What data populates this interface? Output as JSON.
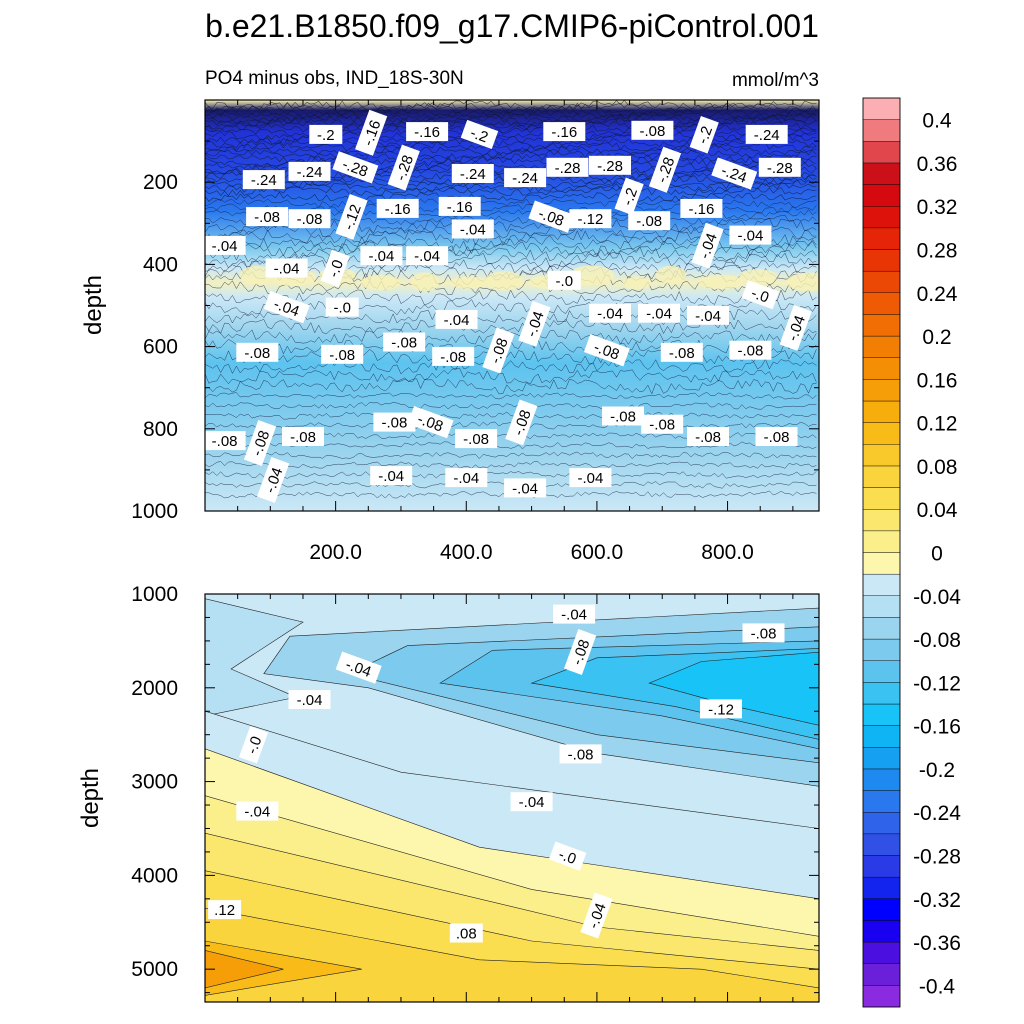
{
  "figure": {
    "title": "b.e21.B1850.f09_g17.CMIP6-piControl.001"
  },
  "chart_data": [
    {
      "type": "contour",
      "panel": "upper",
      "left_title": "PO4 minus obs, IND_18S-30N",
      "right_title": "mmol/m^3",
      "ylabel": "depth",
      "xlabel": "",
      "xlim": [
        0,
        940
      ],
      "ylim": [
        0,
        1000
      ],
      "y_inverted": true,
      "x_ticks": [
        "200.0",
        "400.0",
        "600.0",
        "800.0"
      ],
      "x_tick_values": [
        200,
        400,
        600,
        800
      ],
      "y_ticks": [
        "200",
        "400",
        "600",
        "800",
        "1000"
      ],
      "y_tick_values": [
        200,
        400,
        600,
        800,
        1000
      ],
      "contour_labels": [
        {
          "text": "-.2",
          "x": 185,
          "y": 85
        },
        {
          "text": "-.16",
          "x": 255,
          "y": 80
        },
        {
          "text": "-.16",
          "x": 340,
          "y": 78
        },
        {
          "text": "-.2",
          "x": 420,
          "y": 85
        },
        {
          "text": "-.16",
          "x": 550,
          "y": 78
        },
        {
          "text": "-.08",
          "x": 685,
          "y": 75
        },
        {
          "text": "-.2",
          "x": 765,
          "y": 85
        },
        {
          "text": "-.24",
          "x": 860,
          "y": 85
        },
        {
          "text": "-.24",
          "x": 90,
          "y": 195
        },
        {
          "text": "-.24",
          "x": 160,
          "y": 175
        },
        {
          "text": "-.28",
          "x": 230,
          "y": 165
        },
        {
          "text": "-.28",
          "x": 305,
          "y": 165
        },
        {
          "text": "-.24",
          "x": 410,
          "y": 180
        },
        {
          "text": "-.24",
          "x": 490,
          "y": 190
        },
        {
          "text": "-.28",
          "x": 555,
          "y": 165
        },
        {
          "text": "-.28",
          "x": 620,
          "y": 160
        },
        {
          "text": "-.28",
          "x": 705,
          "y": 170
        },
        {
          "text": "-.24",
          "x": 810,
          "y": 180
        },
        {
          "text": "-.28",
          "x": 880,
          "y": 165
        },
        {
          "text": "-.08",
          "x": 95,
          "y": 285
        },
        {
          "text": "-.08",
          "x": 160,
          "y": 290
        },
        {
          "text": "-.12",
          "x": 225,
          "y": 285
        },
        {
          "text": "-.16",
          "x": 295,
          "y": 265
        },
        {
          "text": "-.16",
          "x": 390,
          "y": 260
        },
        {
          "text": "-.08",
          "x": 530,
          "y": 285
        },
        {
          "text": "-.12",
          "x": 590,
          "y": 290
        },
        {
          "text": "-.2",
          "x": 650,
          "y": 235
        },
        {
          "text": "-.08",
          "x": 680,
          "y": 295
        },
        {
          "text": "-.16",
          "x": 760,
          "y": 265
        },
        {
          "text": "-.04",
          "x": 30,
          "y": 355
        },
        {
          "text": "-.04",
          "x": 125,
          "y": 410
        },
        {
          "text": "-.0",
          "x": 200,
          "y": 410
        },
        {
          "text": "-.04",
          "x": 270,
          "y": 380
        },
        {
          "text": "-.04",
          "x": 340,
          "y": 380
        },
        {
          "text": "-.04",
          "x": 410,
          "y": 315
        },
        {
          "text": "-.0",
          "x": 550,
          "y": 440
        },
        {
          "text": "-.04",
          "x": 770,
          "y": 355
        },
        {
          "text": "-.04",
          "x": 835,
          "y": 330
        },
        {
          "text": "-.04",
          "x": 125,
          "y": 505
        },
        {
          "text": "-.0",
          "x": 210,
          "y": 505
        },
        {
          "text": "-.04",
          "x": 385,
          "y": 535
        },
        {
          "text": "-.04",
          "x": 505,
          "y": 545
        },
        {
          "text": "-.04",
          "x": 620,
          "y": 520
        },
        {
          "text": "-.04",
          "x": 695,
          "y": 520
        },
        {
          "text": "-.04",
          "x": 770,
          "y": 525
        },
        {
          "text": "-.0",
          "x": 850,
          "y": 475
        },
        {
          "text": "-.04",
          "x": 905,
          "y": 555
        },
        {
          "text": "-.08",
          "x": 80,
          "y": 615
        },
        {
          "text": "-.08",
          "x": 210,
          "y": 620
        },
        {
          "text": "-.08",
          "x": 305,
          "y": 590
        },
        {
          "text": "-.08",
          "x": 380,
          "y": 625
        },
        {
          "text": "-.08",
          "x": 450,
          "y": 610
        },
        {
          "text": "-.08",
          "x": 615,
          "y": 610
        },
        {
          "text": "-.08",
          "x": 730,
          "y": 615
        },
        {
          "text": "-.08",
          "x": 835,
          "y": 610
        },
        {
          "text": "-.08",
          "x": 30,
          "y": 830
        },
        {
          "text": "-.08",
          "x": 85,
          "y": 835
        },
        {
          "text": "-.08",
          "x": 150,
          "y": 820
        },
        {
          "text": "-.08",
          "x": 290,
          "y": 785
        },
        {
          "text": "-.08",
          "x": 345,
          "y": 785
        },
        {
          "text": "-.08",
          "x": 415,
          "y": 825
        },
        {
          "text": "-.08",
          "x": 485,
          "y": 785
        },
        {
          "text": "-.08",
          "x": 640,
          "y": 770
        },
        {
          "text": "-.08",
          "x": 700,
          "y": 790
        },
        {
          "text": "-.08",
          "x": 770,
          "y": 820
        },
        {
          "text": "-.08",
          "x": 875,
          "y": 820
        },
        {
          "text": "-.04",
          "x": 105,
          "y": 925
        },
        {
          "text": "-.04",
          "x": 285,
          "y": 915
        },
        {
          "text": "-.04",
          "x": 400,
          "y": 920
        },
        {
          "text": "-.04",
          "x": 490,
          "y": 945
        },
        {
          "text": "-.04",
          "x": 590,
          "y": 920
        }
      ]
    },
    {
      "type": "contour",
      "panel": "lower",
      "ylabel": "depth",
      "xlabel": "",
      "xlim": [
        0,
        940
      ],
      "ylim": [
        1000,
        5350
      ],
      "y_inverted": true,
      "y_ticks": [
        "1000",
        "2000",
        "3000",
        "4000",
        "5000"
      ],
      "y_tick_values": [
        1000,
        2000,
        3000,
        4000,
        5000
      ],
      "contour_labels": [
        {
          "text": "-.04",
          "x": 565,
          "y": 1220
        },
        {
          "text": "-.08",
          "x": 575,
          "y": 1620
        },
        {
          "text": "-.08",
          "x": 855,
          "y": 1420
        },
        {
          "text": "-.04",
          "x": 235,
          "y": 1790
        },
        {
          "text": "-.04",
          "x": 160,
          "y": 2130
        },
        {
          "text": "-.12",
          "x": 790,
          "y": 2230
        },
        {
          "text": "-.0",
          "x": 75,
          "y": 2610
        },
        {
          "text": "-.08",
          "x": 575,
          "y": 2710
        },
        {
          "text": "-.04",
          "x": 500,
          "y": 3220
        },
        {
          "text": "-.04",
          "x": 80,
          "y": 3320
        },
        {
          "text": "-.0",
          "x": 555,
          "y": 3800
        },
        {
          "text": "-.04",
          "x": 600,
          "y": 4430
        },
        {
          "text": ".12",
          "x": 30,
          "y": 4370
        },
        {
          "text": ".08",
          "x": 400,
          "y": 4620
        }
      ]
    },
    {
      "type": "colorbar",
      "levels": [
        -0.42,
        -0.4,
        -0.38,
        -0.36,
        -0.34,
        -0.32,
        -0.3,
        -0.28,
        -0.26,
        -0.24,
        -0.22,
        -0.2,
        -0.18,
        -0.16,
        -0.14,
        -0.12,
        -0.1,
        -0.08,
        -0.06,
        -0.04,
        -0.02,
        0,
        0.02,
        0.04,
        0.06,
        0.08,
        0.1,
        0.12,
        0.14,
        0.16,
        0.18,
        0.2,
        0.22,
        0.24,
        0.26,
        0.28,
        0.3,
        0.32,
        0.34,
        0.36,
        0.38,
        0.4,
        0.42
      ],
      "tick_labels": [
        "-0.4",
        "-0.36",
        "-0.32",
        "-0.28",
        "-0.24",
        "-0.2",
        "-0.16",
        "-0.12",
        "-0.08",
        "-0.04",
        "0",
        "0.04",
        "0.08",
        "0.12",
        "0.16",
        "0.2",
        "0.24",
        "0.28",
        "0.32",
        "0.36",
        "0.4"
      ],
      "tick_values": [
        -0.4,
        -0.36,
        -0.32,
        -0.28,
        -0.24,
        -0.2,
        -0.16,
        -0.12,
        -0.08,
        -0.04,
        0,
        0.04,
        0.08,
        0.12,
        0.16,
        0.2,
        0.24,
        0.28,
        0.32,
        0.36,
        0.4
      ],
      "colors": [
        "#8a2be2",
        "#6a1fd8",
        "#4b0fe0",
        "#1a00f0",
        "#0000ff",
        "#1224ee",
        "#2a3ae6",
        "#3050e6",
        "#2f64ea",
        "#2a78ee",
        "#1e8af0",
        "#15a0f2",
        "#0fb4f4",
        "#17c3f7",
        "#3ac2f2",
        "#5cc3ef",
        "#7ccaee",
        "#9bd4ee",
        "#b5dff2",
        "#cbe8f6",
        "#fdf7ad",
        "#fbef8b",
        "#fbe66e",
        "#fbdd50",
        "#fad43c",
        "#f9c82a",
        "#f8bb18",
        "#f7ad0c",
        "#f59e07",
        "#f48f05",
        "#f27f04",
        "#f06e03",
        "#ee5b04",
        "#ec4805",
        "#e93406",
        "#e52408",
        "#dd130b",
        "#d40a10",
        "#cc1019",
        "#e0464c",
        "#ef7b7f",
        "#fbafb3"
      ]
    }
  ]
}
